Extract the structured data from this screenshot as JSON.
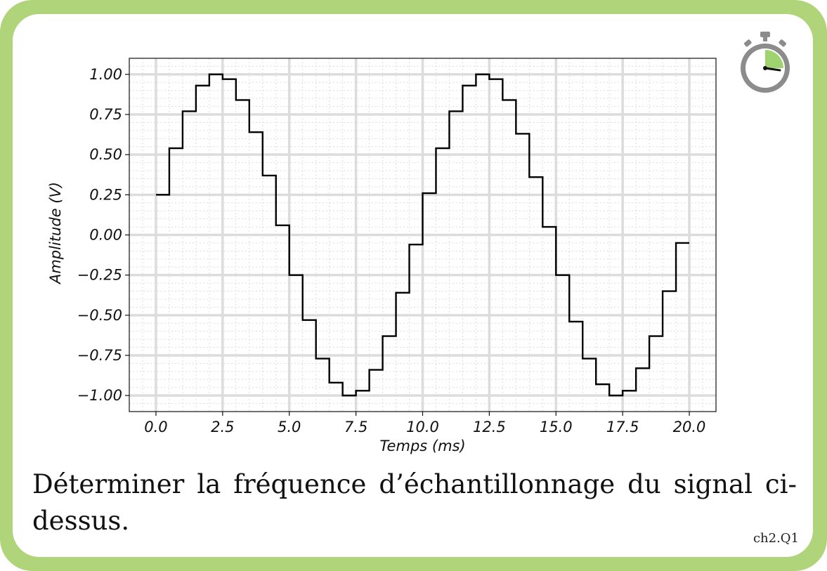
{
  "card": {
    "frame_color": "#b0d47a",
    "question_text": "Déterminer la fréquence d’échantillonnage du signal ci-dessus.",
    "reference": "ch2.Q1"
  },
  "timer": {
    "icon": "stopwatch-icon",
    "fill_fraction": 0.25,
    "accent": "#9ed36f"
  },
  "chart_data": {
    "type": "line",
    "step": "post",
    "xlabel": "Temps (ms)",
    "ylabel": "Amplitude (V)",
    "xlim": [
      -1,
      21
    ],
    "ylim": [
      -1.1,
      1.1
    ],
    "xticks": [
      0.0,
      2.5,
      5.0,
      7.5,
      10.0,
      12.5,
      15.0,
      17.5,
      20.0
    ],
    "xtick_labels": [
      "0.0",
      "2.5",
      "5.0",
      "7.5",
      "10.0",
      "12.5",
      "15.0",
      "17.5",
      "20.0"
    ],
    "yticks": [
      1.0,
      0.75,
      0.5,
      0.25,
      0.0,
      -0.25,
      -0.5,
      -0.75,
      -1.0
    ],
    "ytick_labels": [
      "1.00",
      "0.75",
      "0.50",
      "0.25",
      "0.00",
      "−0.25",
      "−0.50",
      "−0.75",
      "−1.00"
    ],
    "grid": true,
    "minor_grid": true,
    "line_color": "#000000",
    "x": [
      0.0,
      0.5,
      1.0,
      1.5,
      2.0,
      2.5,
      3.0,
      3.5,
      4.0,
      4.5,
      5.0,
      5.5,
      6.0,
      6.5,
      7.0,
      7.5,
      8.0,
      8.5,
      9.0,
      9.5,
      10.0,
      10.5,
      11.0,
      11.5,
      12.0,
      12.5,
      13.0,
      13.5,
      14.0,
      14.5,
      15.0,
      15.5,
      16.0,
      16.5,
      17.0,
      17.5,
      18.0,
      18.5,
      19.0,
      19.5,
      20.0
    ],
    "values": [
      0.25,
      0.54,
      0.77,
      0.93,
      1.0,
      0.97,
      0.84,
      0.64,
      0.37,
      0.06,
      -0.25,
      -0.53,
      -0.77,
      -0.92,
      -1.0,
      -0.97,
      -0.84,
      -0.63,
      -0.36,
      -0.06,
      0.26,
      0.54,
      0.77,
      0.93,
      1.0,
      0.97,
      0.84,
      0.63,
      0.36,
      0.05,
      -0.25,
      -0.54,
      -0.77,
      -0.93,
      -1.0,
      -0.97,
      -0.83,
      -0.63,
      -0.35,
      -0.05,
      -0.05
    ]
  }
}
